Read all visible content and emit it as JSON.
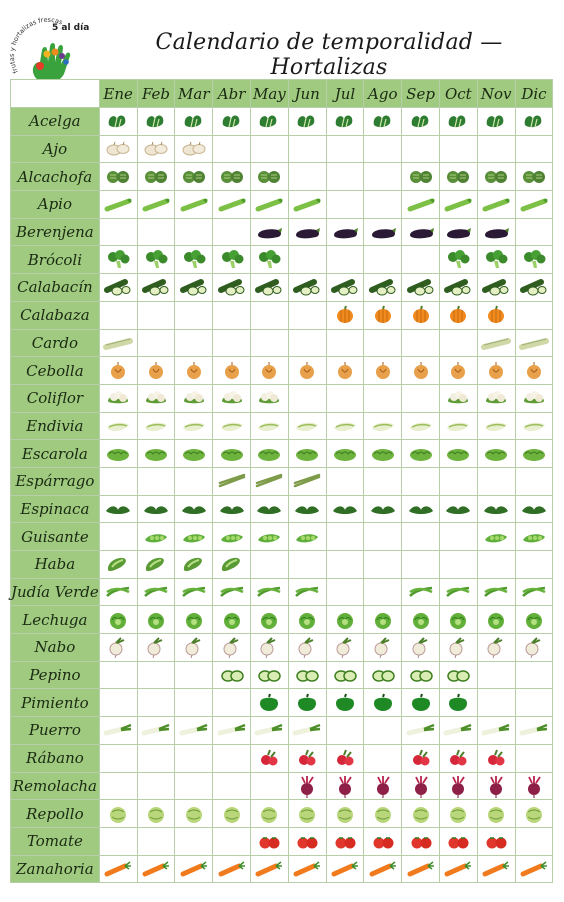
{
  "title": "Calendario de temporalidad — Hortalizas",
  "logo": {
    "main": "5 al día",
    "sub": "frutas y hortalizas frescas"
  },
  "months": [
    "Ene",
    "Feb",
    "Mar",
    "Abr",
    "May",
    "Jun",
    "Jul",
    "Ago",
    "Sep",
    "Oct",
    "Nov",
    "Dic"
  ],
  "colors": {
    "header_bg": "#9fca80",
    "border": "#b7cfa8"
  },
  "vegetables": [
    {
      "name": "Acelga",
      "icon": "chard-icon",
      "months": [
        1,
        1,
        1,
        1,
        1,
        1,
        1,
        1,
        1,
        1,
        1,
        1
      ]
    },
    {
      "name": "Ajo",
      "icon": "garlic-icon",
      "months": [
        1,
        1,
        1,
        0,
        0,
        0,
        0,
        0,
        0,
        0,
        0,
        0
      ]
    },
    {
      "name": "Alcachofa",
      "icon": "artichoke-icon",
      "months": [
        1,
        1,
        1,
        1,
        1,
        0,
        0,
        0,
        1,
        1,
        1,
        1
      ]
    },
    {
      "name": "Apio",
      "icon": "celery-icon",
      "months": [
        1,
        1,
        1,
        1,
        1,
        1,
        0,
        0,
        1,
        1,
        1,
        1
      ]
    },
    {
      "name": "Berenjena",
      "icon": "eggplant-icon",
      "months": [
        0,
        0,
        0,
        0,
        1,
        1,
        1,
        1,
        1,
        1,
        1,
        0
      ]
    },
    {
      "name": "Brócoli",
      "icon": "broccoli-icon",
      "months": [
        1,
        1,
        1,
        1,
        1,
        0,
        0,
        0,
        0,
        1,
        1,
        1
      ]
    },
    {
      "name": "Calabacín",
      "icon": "zucchini-icon",
      "months": [
        1,
        1,
        1,
        1,
        1,
        1,
        1,
        1,
        1,
        1,
        1,
        1
      ]
    },
    {
      "name": "Calabaza",
      "icon": "pumpkin-icon",
      "months": [
        0,
        0,
        0,
        0,
        0,
        0,
        1,
        1,
        1,
        1,
        1,
        0
      ]
    },
    {
      "name": "Cardo",
      "icon": "cardoon-icon",
      "months": [
        1,
        0,
        0,
        0,
        0,
        0,
        0,
        0,
        0,
        0,
        1,
        1
      ]
    },
    {
      "name": "Cebolla",
      "icon": "onion-icon",
      "months": [
        1,
        1,
        1,
        1,
        1,
        1,
        1,
        1,
        1,
        1,
        1,
        1
      ]
    },
    {
      "name": "Coliflor",
      "icon": "cauliflower-icon",
      "months": [
        1,
        1,
        1,
        1,
        1,
        0,
        0,
        0,
        0,
        1,
        1,
        1
      ]
    },
    {
      "name": "Endivia",
      "icon": "endive-icon",
      "months": [
        1,
        1,
        1,
        1,
        1,
        1,
        1,
        1,
        1,
        1,
        1,
        1
      ]
    },
    {
      "name": "Escarola",
      "icon": "escarole-icon",
      "months": [
        1,
        1,
        1,
        1,
        1,
        1,
        1,
        1,
        1,
        1,
        1,
        1
      ]
    },
    {
      "name": "Espárrago",
      "icon": "asparagus-icon",
      "months": [
        0,
        0,
        0,
        1,
        1,
        1,
        0,
        0,
        0,
        0,
        0,
        0
      ]
    },
    {
      "name": "Espinaca",
      "icon": "spinach-icon",
      "months": [
        1,
        1,
        1,
        1,
        1,
        1,
        1,
        1,
        1,
        1,
        1,
        1
      ]
    },
    {
      "name": "Guisante",
      "icon": "pea-icon",
      "months": [
        0,
        1,
        1,
        1,
        1,
        1,
        0,
        0,
        0,
        0,
        1,
        1
      ]
    },
    {
      "name": "Haba",
      "icon": "broad-bean-icon",
      "months": [
        1,
        1,
        1,
        1,
        0,
        0,
        0,
        0,
        0,
        0,
        0,
        0
      ]
    },
    {
      "name": "Judía Verde",
      "icon": "green-bean-icon",
      "months": [
        1,
        1,
        1,
        1,
        1,
        1,
        0,
        0,
        1,
        1,
        1,
        1
      ]
    },
    {
      "name": "Lechuga",
      "icon": "lettuce-icon",
      "months": [
        1,
        1,
        1,
        1,
        1,
        1,
        1,
        1,
        1,
        1,
        1,
        1
      ]
    },
    {
      "name": "Nabo",
      "icon": "turnip-icon",
      "months": [
        1,
        1,
        1,
        1,
        1,
        1,
        1,
        1,
        1,
        1,
        1,
        1
      ]
    },
    {
      "name": "Pepino",
      "icon": "cucumber-icon",
      "months": [
        0,
        0,
        0,
        1,
        1,
        1,
        1,
        1,
        1,
        1,
        0,
        0
      ]
    },
    {
      "name": "Pimiento",
      "icon": "pepper-icon",
      "months": [
        0,
        0,
        0,
        0,
        1,
        1,
        1,
        1,
        1,
        1,
        0,
        0
      ]
    },
    {
      "name": "Puerro",
      "icon": "leek-icon",
      "months": [
        1,
        1,
        1,
        1,
        1,
        1,
        0,
        0,
        1,
        1,
        1,
        1
      ]
    },
    {
      "name": "Rábano",
      "icon": "radish-icon",
      "months": [
        0,
        0,
        0,
        0,
        1,
        1,
        1,
        0,
        1,
        1,
        1,
        0
      ]
    },
    {
      "name": "Remolacha",
      "icon": "beet-icon",
      "months": [
        0,
        0,
        0,
        0,
        0,
        1,
        1,
        1,
        1,
        1,
        1,
        1
      ]
    },
    {
      "name": "Repollo",
      "icon": "cabbage-icon",
      "months": [
        1,
        1,
        1,
        1,
        1,
        1,
        1,
        1,
        1,
        1,
        1,
        1
      ]
    },
    {
      "name": "Tomate",
      "icon": "tomato-icon",
      "months": [
        0,
        0,
        0,
        0,
        1,
        1,
        1,
        1,
        1,
        1,
        1,
        0
      ]
    },
    {
      "name": "Zanahoria",
      "icon": "carrot-icon",
      "months": [
        1,
        1,
        1,
        1,
        1,
        1,
        1,
        1,
        1,
        1,
        1,
        1
      ]
    }
  ]
}
